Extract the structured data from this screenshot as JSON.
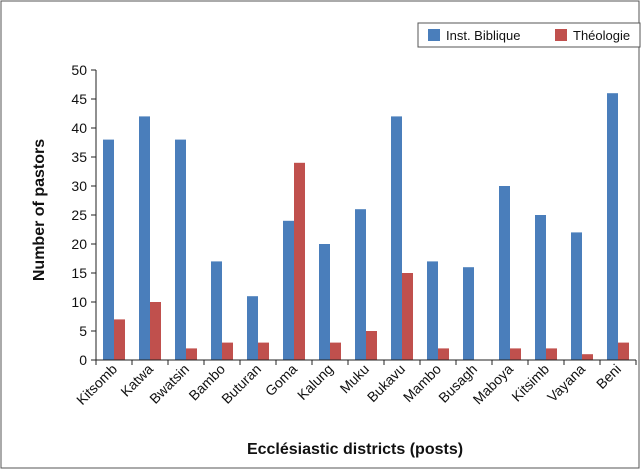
{
  "chart_data": {
    "type": "bar",
    "title": "",
    "xlabel": "Ecclésiastic districts (posts)",
    "ylabel": "Number of pastors",
    "ylim": [
      0,
      50
    ],
    "yticks": [
      0,
      5,
      10,
      15,
      20,
      25,
      30,
      35,
      40,
      45,
      50
    ],
    "grid": false,
    "legend_position": "top-right",
    "categories": [
      "Kitsomb",
      "Katwa",
      "Bwatsin",
      "Bambo",
      "Buturan",
      "Goma",
      "Kalung",
      "Muku",
      "Bukavu",
      "Mambo",
      "Busagh",
      "Maboya",
      "Kitsimb",
      "Vayana",
      "Beni"
    ],
    "series": [
      {
        "name": "Inst. Biblique",
        "color": "#4a7ebb",
        "values": [
          38,
          42,
          38,
          17,
          11,
          24,
          20,
          26,
          42,
          17,
          16,
          30,
          25,
          22,
          46
        ]
      },
      {
        "name": "Théologie",
        "color": "#c0504d",
        "values": [
          7,
          10,
          2,
          3,
          3,
          34,
          3,
          5,
          15,
          2,
          0,
          2,
          2,
          1,
          3
        ]
      }
    ]
  }
}
